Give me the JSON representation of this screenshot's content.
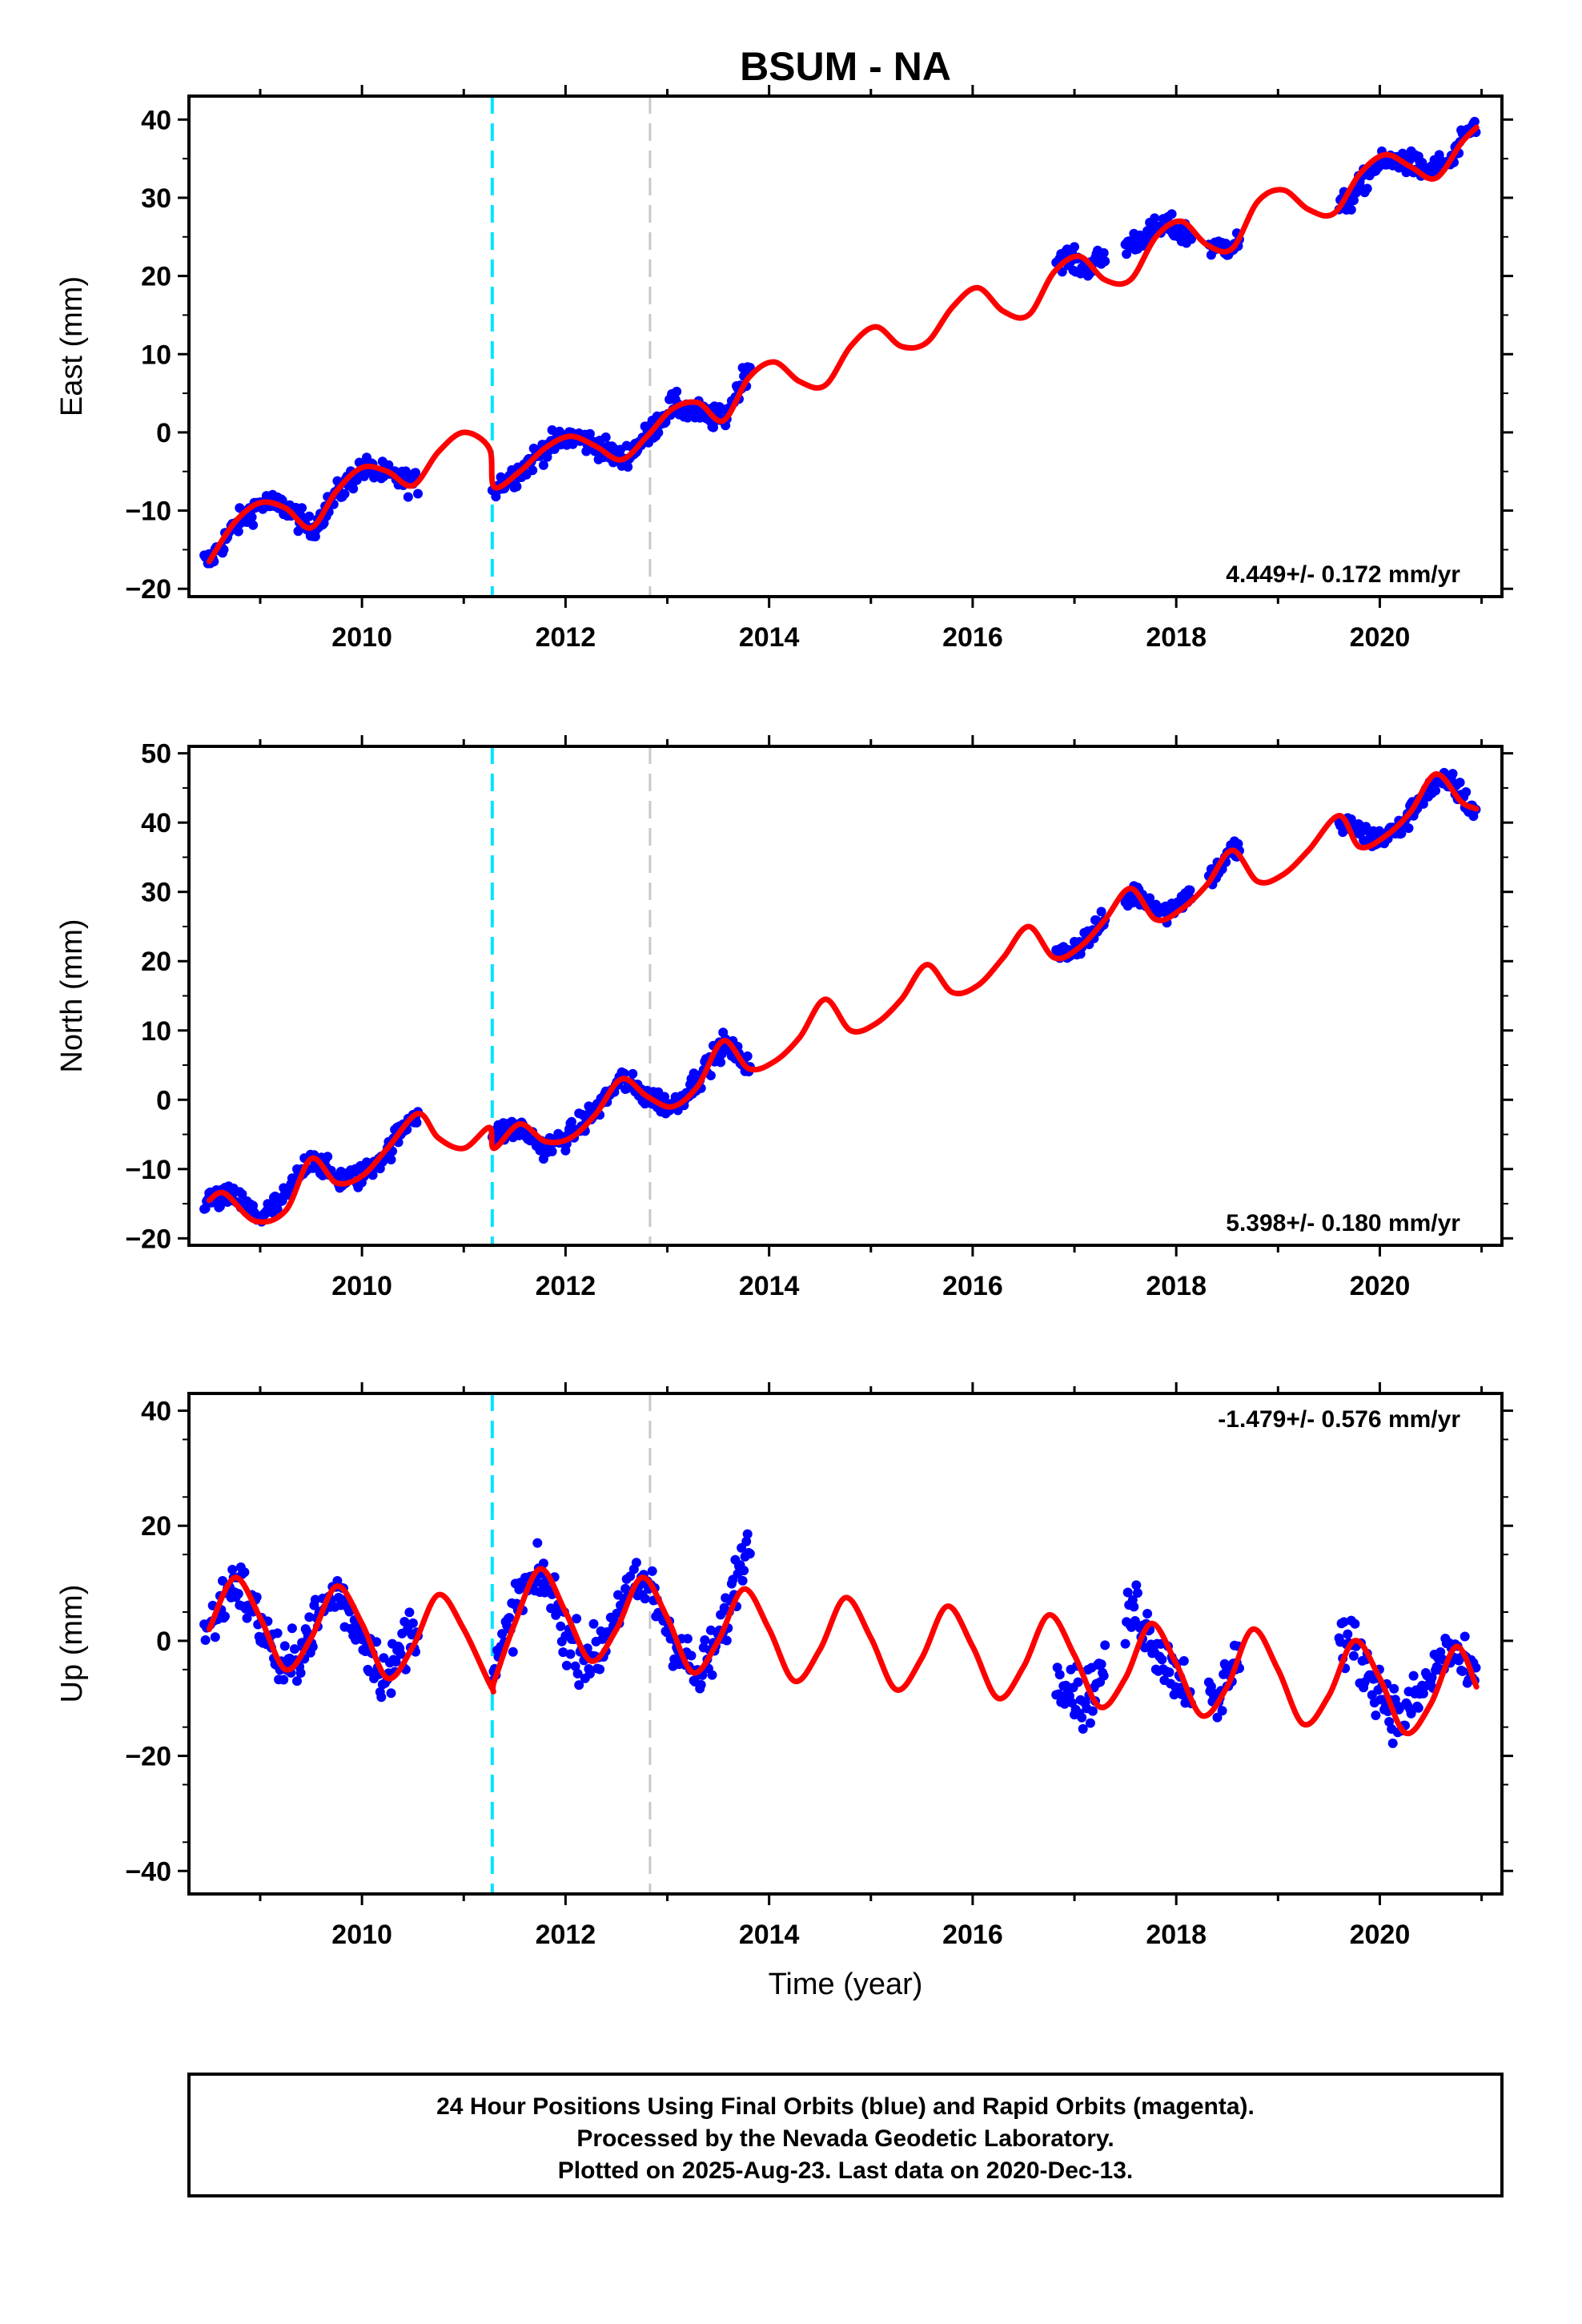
{
  "chart_data": {
    "type": "scatter",
    "title": "BSUM - NA",
    "xlabel": "Time (year)",
    "xlim": [
      2008.3,
      2021.2
    ],
    "x_ticks": [
      2010,
      2012,
      2014,
      2016,
      2018,
      2020
    ],
    "event_lines": [
      {
        "x": 2011.28,
        "color": "#00e5ff",
        "style": "dashed"
      },
      {
        "x": 2012.83,
        "color": "#c8c8c8",
        "style": "dashed"
      }
    ],
    "data_segments": [
      [
        2008.45,
        2010.55
      ],
      [
        2011.28,
        2013.82
      ],
      [
        2016.82,
        2017.3
      ],
      [
        2017.5,
        2018.15
      ],
      [
        2018.32,
        2018.62
      ],
      [
        2019.6,
        2020.95
      ]
    ],
    "panels": [
      {
        "ylabel": "East (mm)",
        "ylim": [
          -21,
          43
        ],
        "y_ticks": [
          -20,
          -10,
          0,
          10,
          20,
          30,
          40
        ],
        "rate_text": "4.449+/- 0.172 mm/yr",
        "rate_pos": "bottom-right",
        "series": [
          {
            "kind": "observations",
            "color": "#0000ff",
            "x": [
              2008.5,
              2008.75,
              2009.0,
              2009.25,
              2009.5,
              2009.75,
              2010.0,
              2010.25,
              2010.5,
              2011.3,
              2011.55,
              2011.8,
              2012.05,
              2012.3,
              2012.55,
              2012.8,
              2013.05,
              2013.3,
              2013.55,
              2013.8,
              2016.9,
              2017.1,
              2017.6,
              2017.9,
              2018.4,
              2018.55,
              2019.7,
              2019.95,
              2020.2,
              2020.45,
              2020.7,
              2020.9
            ],
            "y": [
              -16.5,
              -12.0,
              -9.0,
              -9.5,
              -12.5,
              -8.0,
              -4.5,
              -5.5,
              -6.5,
              -7.0,
              -5.0,
              -2.0,
              -0.5,
              -1.5,
              -3.5,
              -0.5,
              3.5,
              2.5,
              1.5,
              8.5,
              22.5,
              21.0,
              24.5,
              26.5,
              23.5,
              24.0,
              29.5,
              34.0,
              35.0,
              33.5,
              34.5,
              39.0
            ]
          },
          {
            "kind": "model",
            "color": "#ff0000",
            "x": [
              2008.5,
              2008.75,
              2009.0,
              2009.25,
              2009.5,
              2009.75,
              2010.0,
              2010.25,
              2010.5,
              2010.75,
              2011.0,
              2011.25,
              2011.3,
              2011.55,
              2011.8,
              2012.05,
              2012.3,
              2012.55,
              2012.8,
              2013.05,
              2013.3,
              2013.55,
              2013.8,
              2014.05,
              2014.3,
              2014.55,
              2014.8,
              2015.05,
              2015.3,
              2015.55,
              2015.8,
              2016.05,
              2016.3,
              2016.55,
              2016.8,
              2017.05,
              2017.3,
              2017.55,
              2017.8,
              2018.05,
              2018.3,
              2018.55,
              2018.8,
              2019.05,
              2019.3,
              2019.55,
              2019.8,
              2020.05,
              2020.3,
              2020.55,
              2020.8,
              2020.95
            ],
            "y": [
              -16.5,
              -11.5,
              -9.0,
              -9.7,
              -12.2,
              -7.5,
              -4.5,
              -5.0,
              -6.8,
              -2.5,
              0.0,
              -2.0,
              -7.0,
              -5.0,
              -2.0,
              -0.5,
              -1.8,
              -3.5,
              -0.5,
              3.0,
              3.8,
              1.5,
              7.0,
              9.0,
              6.5,
              6.0,
              11.0,
              13.5,
              11.0,
              11.5,
              16.0,
              18.5,
              15.5,
              15.0,
              20.5,
              22.5,
              19.5,
              19.5,
              25.0,
              27.0,
              24.0,
              23.5,
              29.5,
              31.0,
              28.5,
              28.0,
              33.0,
              35.5,
              34.0,
              32.5,
              37.0,
              39.0
            ]
          }
        ]
      },
      {
        "ylabel": "North (mm)",
        "ylim": [
          -21,
          51
        ],
        "y_ticks": [
          -20,
          -10,
          0,
          10,
          20,
          30,
          40,
          50
        ],
        "rate_text": "5.398+/- 0.180 mm/yr",
        "rate_pos": "bottom-right",
        "series": [
          {
            "kind": "observations",
            "color": "#0000ff",
            "x": [
              2008.5,
              2008.75,
              2009.0,
              2009.25,
              2009.5,
              2009.75,
              2010.0,
              2010.25,
              2010.5,
              2011.3,
              2011.55,
              2011.8,
              2012.05,
              2012.3,
              2012.55,
              2012.8,
              2013.05,
              2013.3,
              2013.55,
              2013.8,
              2016.9,
              2017.1,
              2017.6,
              2017.9,
              2018.4,
              2018.55,
              2019.7,
              2019.95,
              2020.2,
              2020.45,
              2020.7,
              2020.9
            ],
            "y": [
              -14.5,
              -14.0,
              -17.0,
              -14.0,
              -8.0,
              -11.5,
              -11.0,
              -7.5,
              -2.0,
              -5.0,
              -4.0,
              -7.0,
              -5.0,
              -1.5,
              3.0,
              0.5,
              -1.0,
              3.0,
              8.0,
              5.0,
              21.0,
              23.0,
              30.0,
              27.0,
              33.0,
              36.0,
              39.5,
              37.5,
              39.0,
              44.5,
              46.0,
              42.0
            ]
          },
          {
            "kind": "model",
            "color": "#ff0000",
            "x": [
              2008.5,
              2008.65,
              2008.95,
              2009.25,
              2009.5,
              2009.75,
              2010.0,
              2010.25,
              2010.55,
              2010.75,
              2011.0,
              2011.25,
              2011.3,
              2011.55,
              2011.8,
              2012.05,
              2012.3,
              2012.55,
              2012.8,
              2013.05,
              2013.3,
              2013.55,
              2013.8,
              2014.05,
              2014.3,
              2014.55,
              2014.8,
              2015.05,
              2015.3,
              2015.55,
              2015.8,
              2016.05,
              2016.3,
              2016.55,
              2016.8,
              2017.05,
              2017.3,
              2017.55,
              2017.8,
              2018.05,
              2018.3,
              2018.55,
              2018.8,
              2019.05,
              2019.3,
              2019.6,
              2019.8,
              2020.05,
              2020.3,
              2020.55,
              2020.8,
              2020.95
            ],
            "y": [
              -14.5,
              -13.5,
              -17.5,
              -16.0,
              -8.5,
              -12.0,
              -11.0,
              -7.0,
              -2.0,
              -5.5,
              -7.0,
              -4.0,
              -7.0,
              -3.5,
              -6.0,
              -5.5,
              -2.0,
              3.0,
              0.5,
              -1.0,
              2.0,
              8.5,
              4.5,
              5.5,
              9.0,
              14.5,
              10.0,
              11.0,
              14.5,
              19.5,
              15.5,
              16.5,
              20.5,
              25.0,
              20.5,
              22.0,
              26.0,
              30.5,
              26.0,
              27.5,
              31.0,
              36.0,
              31.5,
              32.5,
              36.0,
              41.0,
              36.5,
              38.0,
              41.5,
              47.0,
              43.0,
              42.0
            ]
          }
        ]
      },
      {
        "ylabel": "Up (mm)",
        "ylim": [
          -44,
          43
        ],
        "y_ticks": [
          -40,
          -20,
          0,
          20,
          40
        ],
        "rate_text": "-1.479+/- 0.576 mm/yr",
        "rate_pos": "top-right",
        "series": [
          {
            "kind": "observations",
            "color": "#0000ff",
            "x": [
              2008.5,
              2008.75,
              2009.0,
              2009.25,
              2009.5,
              2009.75,
              2010.0,
              2010.25,
              2010.5,
              2011.3,
              2011.55,
              2011.8,
              2012.05,
              2012.3,
              2012.55,
              2012.8,
              2013.05,
              2013.3,
              2013.55,
              2013.75,
              2016.9,
              2017.1,
              2017.6,
              2017.9,
              2018.4,
              2018.55,
              2019.7,
              2019.95,
              2020.2,
              2020.45,
              2020.7,
              2020.9
            ],
            "y": [
              2.0,
              11.0,
              3.0,
              -6.0,
              2.0,
              9.0,
              1.0,
              -7.0,
              3.0,
              -6.0,
              8.0,
              11.0,
              -1.0,
              -3.0,
              7.0,
              10.0,
              1.0,
              -7.0,
              2.0,
              16.0,
              -6.0,
              -11.0,
              6.0,
              -4.0,
              -12.0,
              -3.0,
              0.0,
              -7.0,
              -14.0,
              -8.0,
              -1.0,
              -7.0
            ]
          },
          {
            "kind": "model",
            "color": "#ff0000",
            "x": [
              2008.5,
              2008.75,
              2009.0,
              2009.25,
              2009.5,
              2009.75,
              2010.0,
              2010.25,
              2010.5,
              2010.75,
              2011.0,
              2011.27,
              2011.3,
              2011.5,
              2011.75,
              2012.0,
              2012.25,
              2012.5,
              2012.75,
              2013.0,
              2013.25,
              2013.5,
              2013.75,
              2014.0,
              2014.25,
              2014.5,
              2014.75,
              2015.0,
              2015.25,
              2015.5,
              2015.75,
              2016.0,
              2016.25,
              2016.5,
              2016.75,
              2017.0,
              2017.25,
              2017.5,
              2017.75,
              2018.0,
              2018.25,
              2018.5,
              2018.75,
              2019.0,
              2019.25,
              2019.5,
              2019.75,
              2020.0,
              2020.25,
              2020.5,
              2020.75,
              2020.95
            ],
            "y": [
              2.0,
              11.0,
              4.0,
              -5.0,
              0.5,
              9.5,
              3.0,
              -6.5,
              -1.0,
              8.0,
              2.0,
              -8.0,
              -7.0,
              3.0,
              12.5,
              5.0,
              -3.5,
              2.0,
              11.0,
              4.0,
              -5.5,
              0.0,
              9.0,
              2.0,
              -7.0,
              -1.5,
              7.5,
              0.5,
              -8.5,
              -3.0,
              6.0,
              -1.0,
              -10.0,
              -4.5,
              4.5,
              -2.5,
              -11.5,
              -6.5,
              3.0,
              -4.0,
              -13.0,
              -8.0,
              2.0,
              -5.0,
              -14.5,
              -9.5,
              0.0,
              -6.5,
              -16.0,
              -11.0,
              -1.0,
              -8.0
            ]
          }
        ]
      }
    ]
  },
  "footer": {
    "lines": [
      "24 Hour Positions Using Final Orbits (blue) and Rapid Orbits (magenta).",
      "Processed by the Nevada Geodetic Laboratory.",
      "Plotted on 2025-Aug-23. Last data on 2020-Dec-13."
    ]
  }
}
